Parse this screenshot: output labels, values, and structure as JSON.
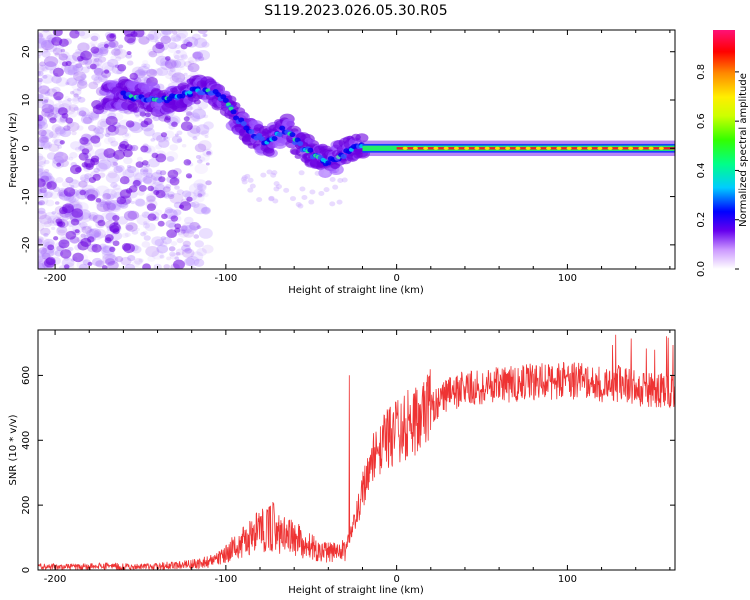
{
  "title": "S119.2023.026.05.30.R05",
  "chart_data": [
    {
      "type": "heatmap",
      "xlabel": "Height of straight line (km)",
      "ylabel": "Frequency (Hz)",
      "xlim": [
        -210,
        163
      ],
      "ylim": [
        -25,
        24.5
      ],
      "xticks": [
        -200,
        -100,
        0,
        100
      ],
      "yticks": [
        -20,
        -10,
        0,
        10,
        20
      ],
      "colorbar": {
        "label": "Normalized spectral amplitude",
        "range": [
          0,
          0.97
        ],
        "ticks": [
          0.0,
          0.2,
          0.4,
          0.6,
          0.8
        ]
      },
      "ridge": {
        "x": [
          -160,
          -140,
          -125,
          -118,
          -110,
          -100,
          -95,
          -90,
          -85,
          -80,
          -75,
          -70,
          -65,
          -60,
          -55,
          -50,
          -45,
          -40,
          -35,
          -30,
          -25,
          -20,
          -15,
          -10,
          -5,
          0,
          10,
          20,
          40,
          60,
          80,
          100,
          120,
          140,
          163
        ],
        "frequency": [
          11,
          10,
          11,
          12,
          12,
          10,
          7,
          5,
          3,
          2,
          1,
          3,
          4,
          2,
          0,
          -1,
          -2,
          -3,
          -2,
          -1,
          0,
          0.5,
          1,
          0.8,
          0.5,
          0.3,
          0.2,
          0,
          0,
          0,
          0,
          0,
          0,
          0,
          0
        ]
      }
    },
    {
      "type": "line",
      "xlabel": "Height of straight line (km)",
      "ylabel": "SNR (10 * v/v)",
      "xlim": [
        -210,
        163
      ],
      "ylim": [
        0,
        740
      ],
      "xticks": [
        -200,
        -100,
        0,
        100
      ],
      "yticks": [
        0,
        200,
        400,
        600
      ],
      "color": "#ee3333",
      "series": [
        {
          "x": [
            -210,
            -190,
            -170,
            -150,
            -130,
            -115,
            -105,
            -95,
            -85,
            -80,
            -75,
            -70,
            -65,
            -60,
            -55,
            -50,
            -45,
            -40,
            -35,
            -30,
            -27,
            -25,
            -22,
            -20,
            -17,
            -15,
            -12,
            -10,
            -7,
            -5,
            -2,
            0,
            5,
            10,
            15,
            20,
            25,
            30,
            40,
            50,
            60,
            70,
            80,
            90,
            100,
            110,
            120,
            130,
            140,
            150,
            163
          ],
          "values": [
            10,
            10,
            12,
            10,
            15,
            20,
            35,
            70,
            100,
            120,
            140,
            130,
            110,
            100,
            80,
            70,
            60,
            55,
            55,
            60,
            120,
            150,
            200,
            240,
            280,
            320,
            360,
            380,
            390,
            400,
            410,
            420,
            440,
            460,
            480,
            500,
            520,
            540,
            560,
            565,
            570,
            575,
            580,
            580,
            585,
            580,
            570,
            575,
            560,
            555,
            550
          ]
        }
      ]
    }
  ]
}
